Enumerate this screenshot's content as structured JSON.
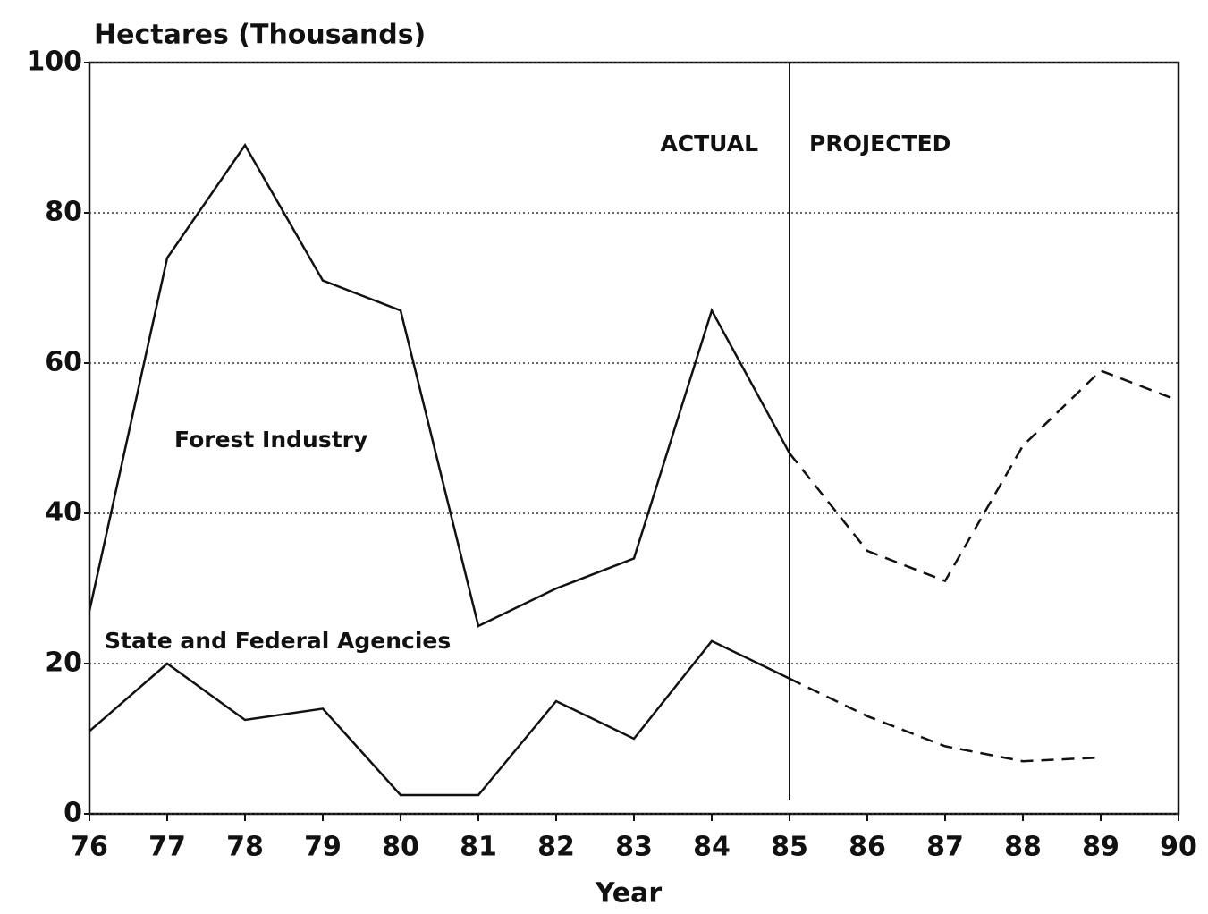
{
  "chart_data": {
    "type": "line",
    "ylabel": "Hectares (Thousands)",
    "xlabel": "Year",
    "categories": [
      "76",
      "77",
      "78",
      "79",
      "80",
      "81",
      "82",
      "83",
      "84",
      "85",
      "86",
      "87",
      "88",
      "89",
      "90"
    ],
    "series": [
      {
        "name": "Forest Industry",
        "color": "#111111",
        "values": [
          27,
          74,
          89,
          71,
          67,
          25,
          30,
          34,
          67,
          48,
          35,
          31,
          49,
          59,
          55
        ]
      },
      {
        "name": "State and Federal Agencies",
        "color": "#111111",
        "values": [
          11,
          20,
          12.5,
          14,
          2.5,
          2.5,
          15,
          10,
          23,
          18,
          13,
          9,
          7,
          7.5,
          null
        ]
      }
    ],
    "divider": "85",
    "annotations": [
      "ACTUAL",
      "PROJECTED"
    ],
    "ylim": [
      0,
      100
    ],
    "yticks": [
      0,
      20,
      40,
      60,
      80,
      100
    ],
    "grid": true
  }
}
